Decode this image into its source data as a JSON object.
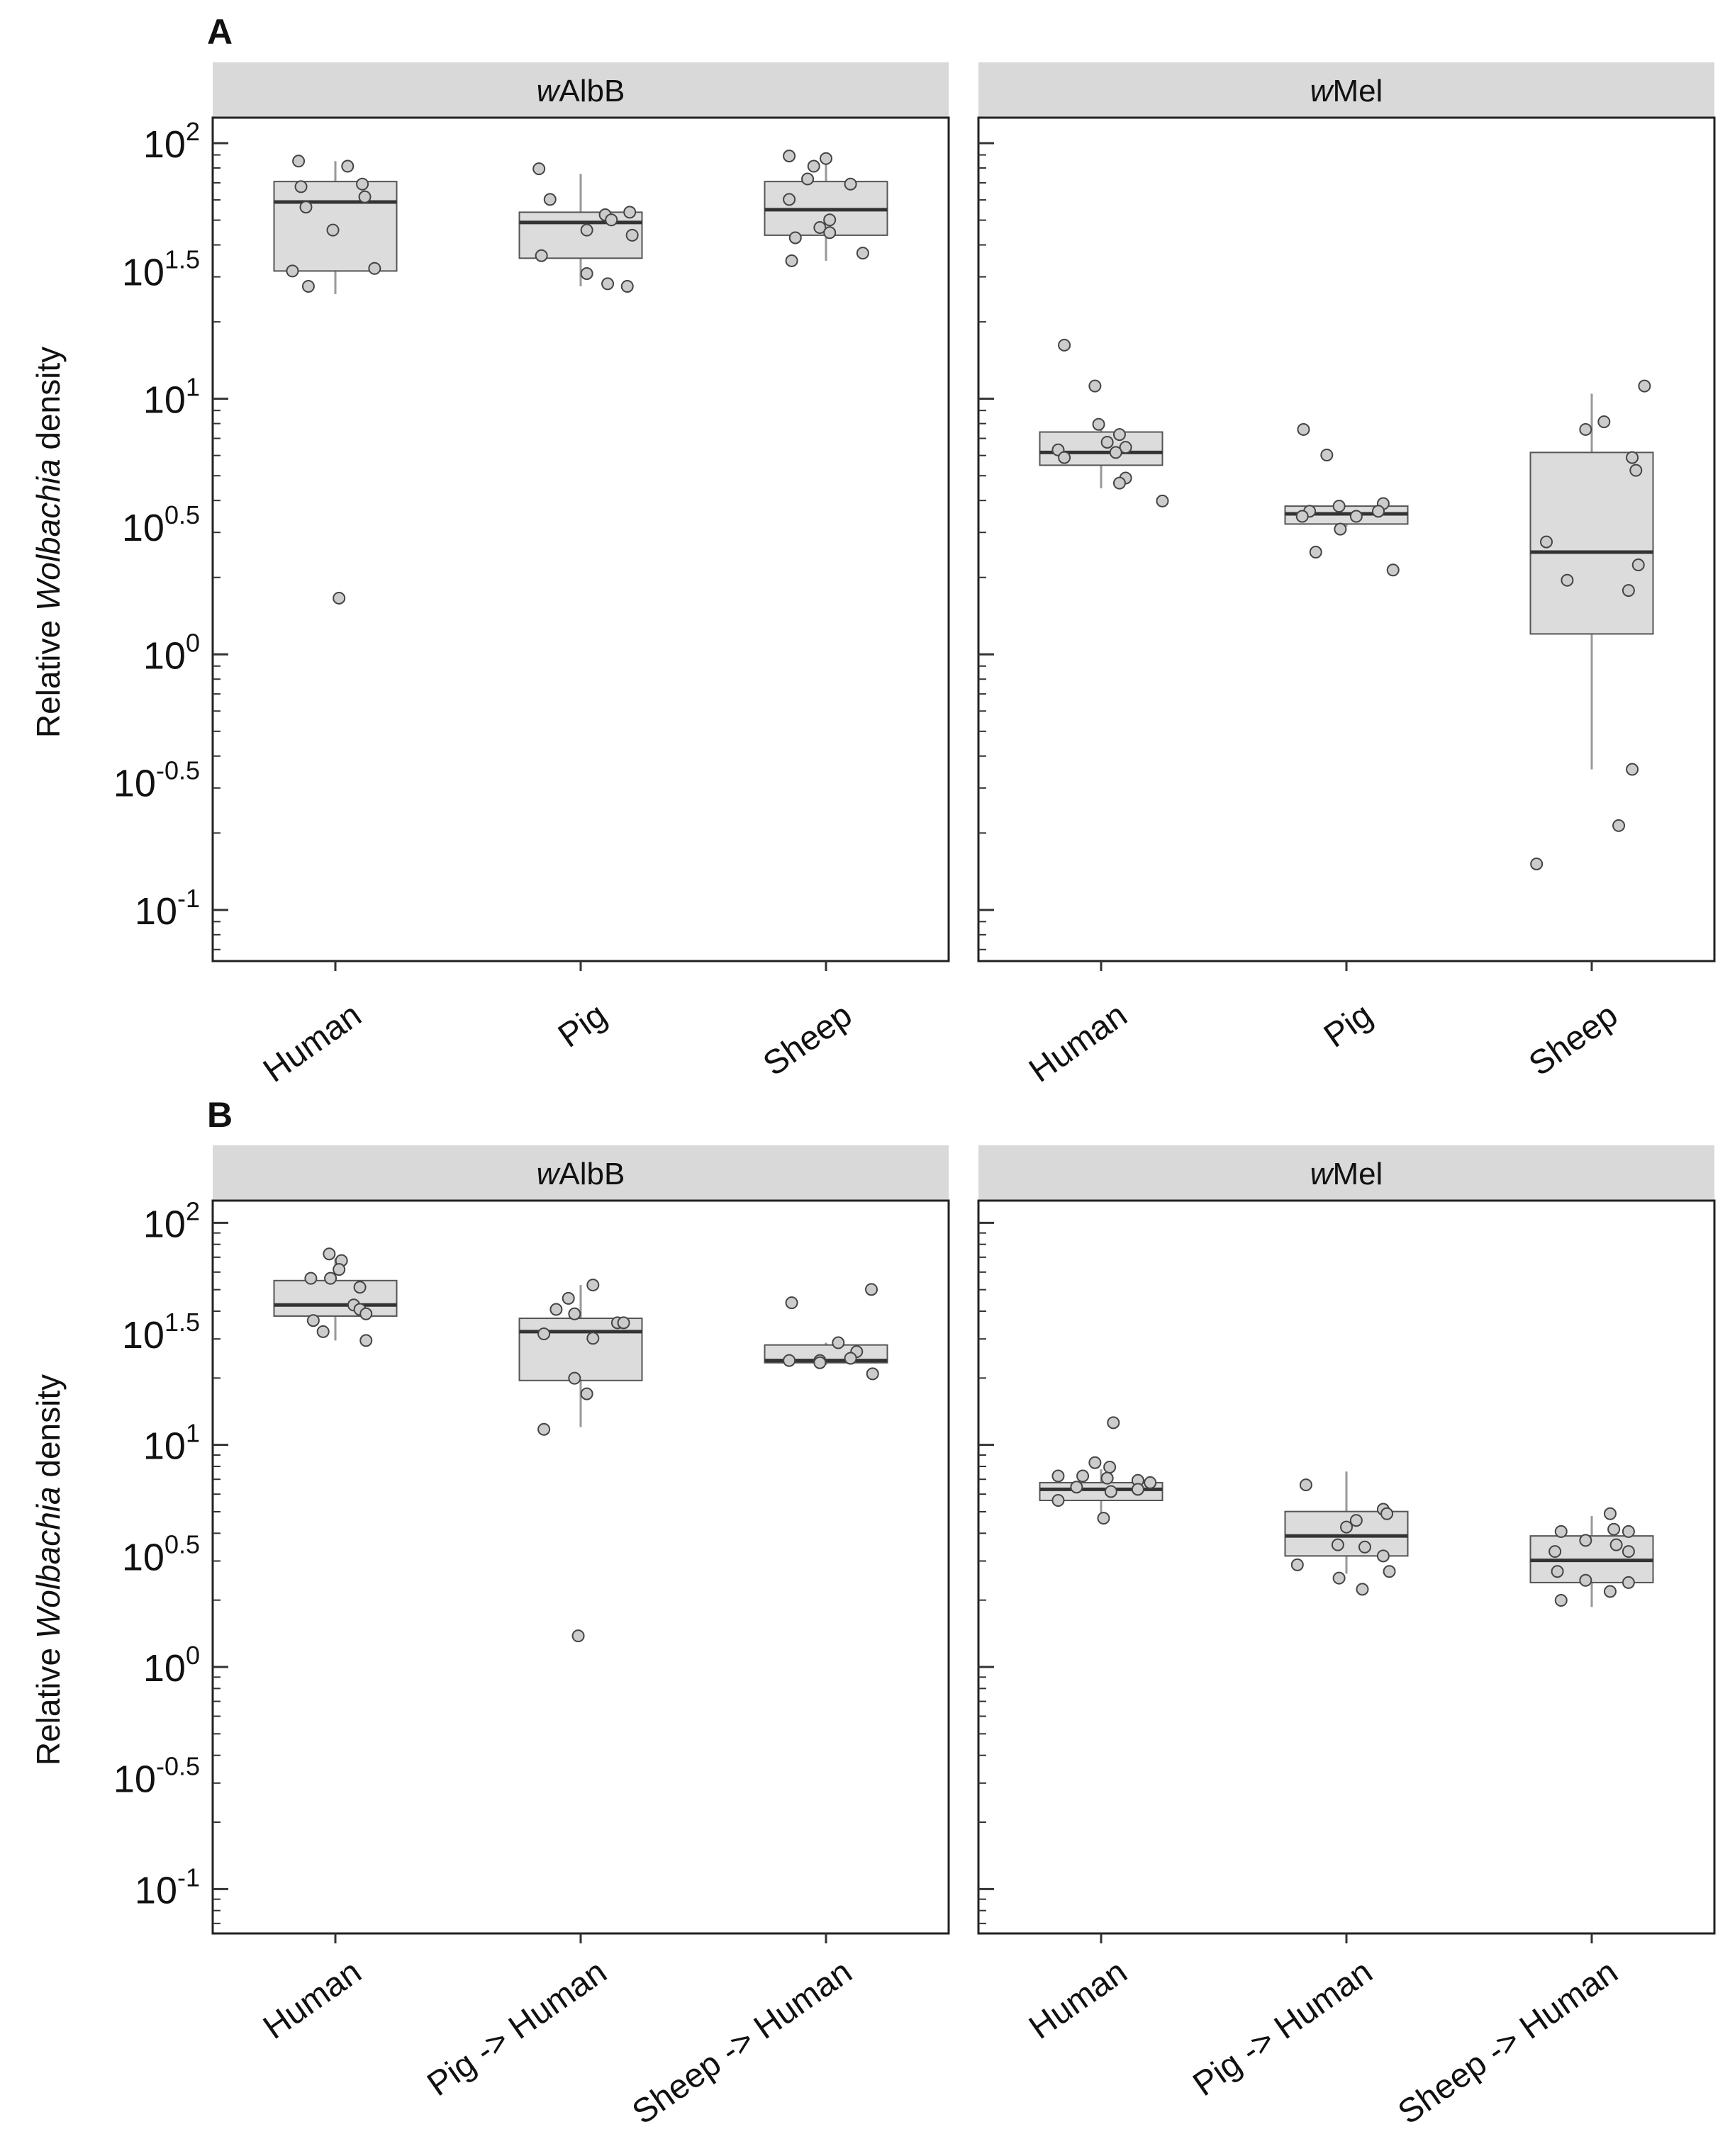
{
  "figure": {
    "y_axis_label_pre": "Relative ",
    "y_axis_label_italic": "Wolbachia",
    "y_axis_label_post": " density"
  },
  "colors": {
    "strip": "#d9d9d9",
    "box_fill": "#dcdcdc",
    "box_stroke": "#555555",
    "median": "#333333",
    "point_fill": "#cccccc",
    "point_stroke": "#444444",
    "whisker": "#999999"
  },
  "chart_data": [
    {
      "type": "box",
      "row": "A",
      "panel_label": "A",
      "strip_italic": "w",
      "strip_rest": "AlbB",
      "scale": "log10",
      "ylim_log10": [
        -1.2,
        2.1
      ],
      "y_ticks": [
        {
          "log": 2,
          "exp": "2"
        },
        {
          "log": 1.5,
          "exp": "1.5"
        },
        {
          "log": 1,
          "exp": "1"
        },
        {
          "log": 0.5,
          "exp": "0.5"
        },
        {
          "log": 0,
          "exp": "0"
        },
        {
          "log": -0.5,
          "exp": "-0.5"
        },
        {
          "log": -1,
          "exp": "-1"
        }
      ],
      "y_base": "10",
      "categories": [
        "Human",
        "Pig",
        "Sheep"
      ],
      "boxes": [
        {
          "category": "Human",
          "q1": 1.5,
          "median": 1.77,
          "q3": 1.85,
          "whisker_low": 1.41,
          "whisker_high": 1.93,
          "points": [
            {
              "j": -0.3,
              "v": 1.93
            },
            {
              "j": 0.1,
              "v": 1.91
            },
            {
              "j": -0.28,
              "v": 1.83
            },
            {
              "j": 0.22,
              "v": 1.84
            },
            {
              "j": -0.24,
              "v": 1.75
            },
            {
              "j": 0.24,
              "v": 1.79
            },
            {
              "j": -0.02,
              "v": 1.66
            },
            {
              "j": -0.35,
              "v": 1.5
            },
            {
              "j": 0.32,
              "v": 1.51
            },
            {
              "j": -0.22,
              "v": 1.44
            },
            {
              "j": 0.03,
              "v": 0.22
            }
          ]
        },
        {
          "category": "Pig",
          "q1": 1.55,
          "median": 1.69,
          "q3": 1.73,
          "whisker_low": 1.44,
          "whisker_high": 1.88,
          "points": [
            {
              "j": -0.34,
              "v": 1.9
            },
            {
              "j": -0.25,
              "v": 1.78
            },
            {
              "j": 0.4,
              "v": 1.73
            },
            {
              "j": 0.2,
              "v": 1.72
            },
            {
              "j": 0.25,
              "v": 1.7
            },
            {
              "j": 0.05,
              "v": 1.66
            },
            {
              "j": 0.42,
              "v": 1.64
            },
            {
              "j": -0.32,
              "v": 1.56
            },
            {
              "j": 0.05,
              "v": 1.49
            },
            {
              "j": 0.22,
              "v": 1.45
            },
            {
              "j": 0.38,
              "v": 1.44
            }
          ]
        },
        {
          "category": "Sheep",
          "q1": 1.64,
          "median": 1.74,
          "q3": 1.85,
          "whisker_low": 1.54,
          "whisker_high": 1.96,
          "points": [
            {
              "j": -0.3,
              "v": 1.95
            },
            {
              "j": -0.1,
              "v": 1.91
            },
            {
              "j": 0.0,
              "v": 1.94
            },
            {
              "j": -0.15,
              "v": 1.86
            },
            {
              "j": 0.2,
              "v": 1.84
            },
            {
              "j": -0.3,
              "v": 1.78
            },
            {
              "j": 0.03,
              "v": 1.7
            },
            {
              "j": -0.05,
              "v": 1.67
            },
            {
              "j": 0.03,
              "v": 1.65
            },
            {
              "j": -0.25,
              "v": 1.63
            },
            {
              "j": 0.3,
              "v": 1.57
            },
            {
              "j": -0.28,
              "v": 1.54
            }
          ]
        }
      ]
    },
    {
      "type": "box",
      "row": "A",
      "panel_label": "",
      "strip_italic": "w",
      "strip_rest": "Mel",
      "scale": "log10",
      "ylim_log10": [
        -1.2,
        2.1
      ],
      "y_ticks": [
        {
          "log": 2,
          "exp": "2"
        },
        {
          "log": 1.5,
          "exp": "1.5"
        },
        {
          "log": 1,
          "exp": "1"
        },
        {
          "log": 0.5,
          "exp": "0.5"
        },
        {
          "log": 0,
          "exp": "0"
        },
        {
          "log": -0.5,
          "exp": "-0.5"
        },
        {
          "log": -1,
          "exp": "-1"
        }
      ],
      "y_base": "10",
      "categories": [
        "Human",
        "Pig",
        "Sheep"
      ],
      "boxes": [
        {
          "category": "Human",
          "q1": 0.74,
          "median": 0.79,
          "q3": 0.87,
          "whisker_low": 0.65,
          "whisker_high": 0.88,
          "points": [
            {
              "j": -0.3,
              "v": 1.21
            },
            {
              "j": -0.05,
              "v": 1.05
            },
            {
              "j": -0.02,
              "v": 0.9
            },
            {
              "j": 0.15,
              "v": 0.86
            },
            {
              "j": 0.05,
              "v": 0.83
            },
            {
              "j": 0.2,
              "v": 0.81
            },
            {
              "j": -0.35,
              "v": 0.8
            },
            {
              "j": 0.12,
              "v": 0.79
            },
            {
              "j": -0.3,
              "v": 0.77
            },
            {
              "j": 0.2,
              "v": 0.69
            },
            {
              "j": 0.15,
              "v": 0.67
            },
            {
              "j": 0.5,
              "v": 0.6
            }
          ]
        },
        {
          "category": "Pig",
          "q1": 0.51,
          "median": 0.55,
          "q3": 0.58,
          "whisker_low": 0.5,
          "whisker_high": 0.58,
          "points": [
            {
              "j": -0.35,
              "v": 0.88
            },
            {
              "j": -0.16,
              "v": 0.78
            },
            {
              "j": -0.3,
              "v": 0.56
            },
            {
              "j": -0.06,
              "v": 0.58
            },
            {
              "j": 0.3,
              "v": 0.59
            },
            {
              "j": 0.26,
              "v": 0.56
            },
            {
              "j": -0.36,
              "v": 0.54
            },
            {
              "j": 0.08,
              "v": 0.54
            },
            {
              "j": -0.05,
              "v": 0.49
            },
            {
              "j": -0.25,
              "v": 0.4
            },
            {
              "j": 0.38,
              "v": 0.33
            }
          ]
        },
        {
          "category": "Sheep",
          "q1": 0.08,
          "median": 0.4,
          "q3": 0.79,
          "whisker_low": -0.45,
          "whisker_high": 1.02,
          "points": [
            {
              "j": 0.43,
              "v": 1.05
            },
            {
              "j": 0.1,
              "v": 0.91
            },
            {
              "j": -0.05,
              "v": 0.88
            },
            {
              "j": 0.33,
              "v": 0.77
            },
            {
              "j": 0.36,
              "v": 0.72
            },
            {
              "j": -0.37,
              "v": 0.44
            },
            {
              "j": 0.38,
              "v": 0.35
            },
            {
              "j": -0.2,
              "v": 0.29
            },
            {
              "j": 0.3,
              "v": 0.25
            },
            {
              "j": 0.33,
              "v": -0.45
            },
            {
              "j": 0.22,
              "v": -0.67
            },
            {
              "j": -0.45,
              "v": -0.82
            }
          ]
        }
      ]
    },
    {
      "type": "box",
      "row": "B",
      "panel_label": "B",
      "strip_italic": "w",
      "strip_rest": "AlbB",
      "scale": "log10",
      "ylim_log10": [
        -1.2,
        2.1
      ],
      "y_ticks": [
        {
          "log": 2,
          "exp": "2"
        },
        {
          "log": 1.5,
          "exp": "1.5"
        },
        {
          "log": 1,
          "exp": "1"
        },
        {
          "log": 0.5,
          "exp": "0.5"
        },
        {
          "log": 0,
          "exp": "0"
        },
        {
          "log": -0.5,
          "exp": "-0.5"
        },
        {
          "log": -1,
          "exp": "-1"
        }
      ],
      "y_base": "10",
      "categories": [
        "Human",
        "Pig -> Human",
        "Sheep -> Human"
      ],
      "boxes": [
        {
          "category": "Human",
          "q1": 1.58,
          "median": 1.63,
          "q3": 1.74,
          "whisker_low": 1.47,
          "whisker_high": 1.84,
          "points": [
            {
              "j": -0.05,
              "v": 1.86
            },
            {
              "j": 0.05,
              "v": 1.83
            },
            {
              "j": 0.03,
              "v": 1.79
            },
            {
              "j": -0.2,
              "v": 1.75
            },
            {
              "j": -0.04,
              "v": 1.75
            },
            {
              "j": 0.2,
              "v": 1.71
            },
            {
              "j": 0.15,
              "v": 1.63
            },
            {
              "j": 0.2,
              "v": 1.61
            },
            {
              "j": 0.25,
              "v": 1.59
            },
            {
              "j": -0.18,
              "v": 1.56
            },
            {
              "j": -0.1,
              "v": 1.51
            },
            {
              "j": 0.25,
              "v": 1.47
            }
          ]
        },
        {
          "category": "Pig -> Human",
          "q1": 1.29,
          "median": 1.51,
          "q3": 1.57,
          "whisker_low": 1.08,
          "whisker_high": 1.72,
          "points": [
            {
              "j": 0.1,
              "v": 1.72
            },
            {
              "j": -0.1,
              "v": 1.66
            },
            {
              "j": -0.2,
              "v": 1.61
            },
            {
              "j": -0.05,
              "v": 1.59
            },
            {
              "j": 0.3,
              "v": 1.55
            },
            {
              "j": 0.35,
              "v": 1.55
            },
            {
              "j": -0.3,
              "v": 1.5
            },
            {
              "j": 0.1,
              "v": 1.48
            },
            {
              "j": -0.05,
              "v": 1.3
            },
            {
              "j": 0.05,
              "v": 1.23
            },
            {
              "j": -0.3,
              "v": 1.07
            },
            {
              "j": -0.02,
              "v": 0.14
            }
          ]
        },
        {
          "category": "Sheep -> Human",
          "q1": 1.37,
          "median": 1.38,
          "q3": 1.45,
          "whisker_low": 1.36,
          "whisker_high": 1.46,
          "points": [
            {
              "j": -0.28,
              "v": 1.64
            },
            {
              "j": 0.37,
              "v": 1.7
            },
            {
              "j": 0.1,
              "v": 1.46
            },
            {
              "j": 0.25,
              "v": 1.42
            },
            {
              "j": 0.2,
              "v": 1.39
            },
            {
              "j": -0.3,
              "v": 1.38
            },
            {
              "j": -0.05,
              "v": 1.38
            },
            {
              "j": -0.05,
              "v": 1.37
            },
            {
              "j": 0.38,
              "v": 1.32
            }
          ]
        }
      ]
    },
    {
      "type": "box",
      "row": "B",
      "panel_label": "",
      "strip_italic": "w",
      "strip_rest": "Mel",
      "scale": "log10",
      "ylim_log10": [
        -1.2,
        2.1
      ],
      "y_ticks": [
        {
          "log": 2,
          "exp": "2"
        },
        {
          "log": 1.5,
          "exp": "1.5"
        },
        {
          "log": 1,
          "exp": "1"
        },
        {
          "log": 0.5,
          "exp": "0.5"
        },
        {
          "log": 0,
          "exp": "0"
        },
        {
          "log": -0.5,
          "exp": "-0.5"
        },
        {
          "log": -1,
          "exp": "-1"
        }
      ],
      "y_base": "10",
      "categories": [
        "Human",
        "Pig -> Human",
        "Sheep -> Human"
      ],
      "boxes": [
        {
          "category": "Human",
          "q1": 0.75,
          "median": 0.8,
          "q3": 0.83,
          "whisker_low": 0.66,
          "whisker_high": 0.89,
          "points": [
            {
              "j": 0.1,
              "v": 1.1
            },
            {
              "j": -0.05,
              "v": 0.92
            },
            {
              "j": 0.07,
              "v": 0.9
            },
            {
              "j": -0.35,
              "v": 0.86
            },
            {
              "j": -0.15,
              "v": 0.86
            },
            {
              "j": 0.05,
              "v": 0.85
            },
            {
              "j": 0.3,
              "v": 0.84
            },
            {
              "j": 0.4,
              "v": 0.83
            },
            {
              "j": -0.2,
              "v": 0.81
            },
            {
              "j": 0.3,
              "v": 0.8
            },
            {
              "j": 0.08,
              "v": 0.79
            },
            {
              "j": -0.35,
              "v": 0.75
            },
            {
              "j": 0.02,
              "v": 0.67
            }
          ]
        },
        {
          "category": "Pig -> Human",
          "q1": 0.5,
          "median": 0.59,
          "q3": 0.7,
          "whisker_low": 0.42,
          "whisker_high": 0.88,
          "points": [
            {
              "j": -0.33,
              "v": 0.82
            },
            {
              "j": 0.3,
              "v": 0.71
            },
            {
              "j": 0.33,
              "v": 0.69
            },
            {
              "j": 0.08,
              "v": 0.66
            },
            {
              "j": 0.0,
              "v": 0.63
            },
            {
              "j": -0.07,
              "v": 0.55
            },
            {
              "j": 0.15,
              "v": 0.54
            },
            {
              "j": 0.3,
              "v": 0.5
            },
            {
              "j": -0.4,
              "v": 0.46
            },
            {
              "j": 0.35,
              "v": 0.43
            },
            {
              "j": -0.06,
              "v": 0.4
            },
            {
              "j": 0.13,
              "v": 0.35
            }
          ]
        },
        {
          "category": "Sheep -> Human",
          "q1": 0.38,
          "median": 0.48,
          "q3": 0.59,
          "whisker_low": 0.27,
          "whisker_high": 0.68,
          "points": [
            {
              "j": 0.15,
              "v": 0.69
            },
            {
              "j": -0.25,
              "v": 0.61
            },
            {
              "j": 0.18,
              "v": 0.62
            },
            {
              "j": 0.3,
              "v": 0.61
            },
            {
              "j": -0.05,
              "v": 0.57
            },
            {
              "j": 0.2,
              "v": 0.55
            },
            {
              "j": 0.3,
              "v": 0.52
            },
            {
              "j": -0.3,
              "v": 0.52
            },
            {
              "j": -0.28,
              "v": 0.43
            },
            {
              "j": -0.05,
              "v": 0.39
            },
            {
              "j": 0.3,
              "v": 0.38
            },
            {
              "j": 0.15,
              "v": 0.34
            },
            {
              "j": -0.25,
              "v": 0.3
            }
          ]
        }
      ]
    }
  ]
}
